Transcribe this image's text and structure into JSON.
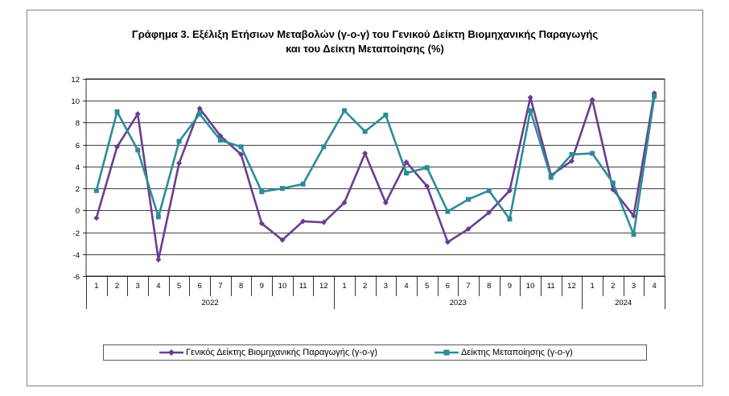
{
  "chart_data": {
    "type": "line",
    "title_line1": "Γράφημα 3. Εξέλιξη Ετήσιων Μεταβολών (γ-ο-γ) του Γενικού Δείκτη Βιομηχανικής Παραγωγής",
    "title_line2": "και του Δείκτη Μεταποίησης (%)",
    "ylim": [
      -6,
      12
    ],
    "yticks": [
      "12",
      "10",
      "8",
      "6",
      "4",
      "2",
      "0",
      "-2",
      "-4",
      "-6"
    ],
    "grid": true,
    "legend_position": "bottom",
    "categories": [
      "1",
      "2",
      "3",
      "4",
      "5",
      "6",
      "7",
      "8",
      "9",
      "10",
      "11",
      "12",
      "1",
      "2",
      "3",
      "4",
      "5",
      "6",
      "7",
      "8",
      "9",
      "10",
      "11",
      "12",
      "1",
      "2",
      "3",
      "4"
    ],
    "year_groups": [
      {
        "label": "2022",
        "count": 12
      },
      {
        "label": "2023",
        "count": 12
      },
      {
        "label": "2024",
        "count": 4
      }
    ],
    "series": [
      {
        "name": "Γενικός Δείκτης Βιομηχανικής Παραγωγής (γ-ο-γ)",
        "color": "#6a3d8f",
        "marker": "diamond",
        "values": [
          -0.7,
          5.8,
          8.8,
          -4.5,
          4.3,
          9.3,
          6.8,
          5.1,
          -1.2,
          -2.7,
          -1.0,
          -1.1,
          0.7,
          5.2,
          0.7,
          4.4,
          2.2,
          -2.9,
          -1.7,
          -0.2,
          1.8,
          10.3,
          3.2,
          4.5,
          10.1,
          1.9,
          -0.5,
          10.7
        ]
      },
      {
        "name": "Δείκτης Μεταποίησης (γ-ο-γ)",
        "color": "#2b8c99",
        "marker": "square",
        "values": [
          1.8,
          9.0,
          5.5,
          -0.6,
          6.3,
          8.8,
          6.4,
          5.8,
          1.7,
          2.0,
          2.4,
          5.8,
          9.1,
          7.2,
          8.7,
          3.4,
          3.9,
          -0.1,
          1.0,
          1.8,
          -0.8,
          9.1,
          3.0,
          5.1,
          5.2,
          2.5,
          -2.2,
          10.4
        ]
      }
    ]
  }
}
